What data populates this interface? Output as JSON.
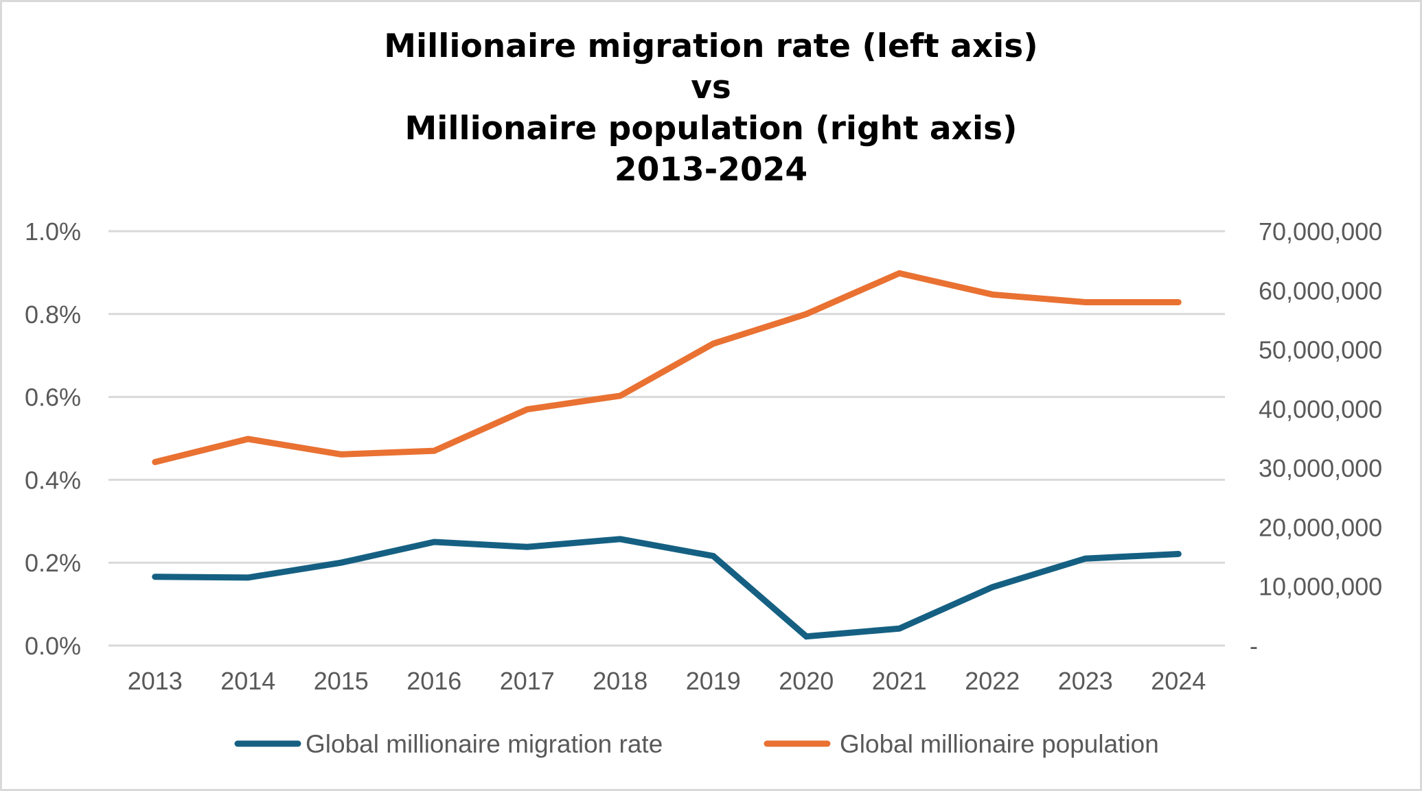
{
  "chart_data": {
    "type": "line",
    "title_lines": [
      "Millionaire migration rate (left axis)",
      "vs",
      "Millionaire population (right axis)",
      "2013-2024"
    ],
    "categories": [
      "2013",
      "2014",
      "2015",
      "2016",
      "2017",
      "2018",
      "2019",
      "2020",
      "2021",
      "2022",
      "2023",
      "2024"
    ],
    "series": [
      {
        "name": "Global millionaire migration rate",
        "axis": "left",
        "color": "#156082",
        "values": [
          0.166,
          0.164,
          0.2,
          0.25,
          0.238,
          0.257,
          0.216,
          0.022,
          0.041,
          0.141,
          0.21,
          0.221
        ]
      },
      {
        "name": "Global millionaire population",
        "axis": "right",
        "color": "#E97132",
        "values": [
          31000000,
          34900000,
          32300000,
          32900000,
          39900000,
          42200000,
          51000000,
          56000000,
          62900000,
          59300000,
          58000000,
          58000000
        ]
      }
    ],
    "left_axis": {
      "min": 0,
      "max": 1.0,
      "step": 0.2,
      "tick_labels": [
        "0.0%",
        "0.2%",
        "0.4%",
        "0.6%",
        "0.8%",
        "1.0%"
      ]
    },
    "right_axis": {
      "min": 0,
      "max": 70000000,
      "step": 10000000,
      "tick_labels": [
        "-",
        "10,000,000",
        "20,000,000",
        "30,000,000",
        "40,000,000",
        "50,000,000",
        "60,000,000",
        "70,000,000"
      ]
    },
    "xlabel": "",
    "ylabel_left": "",
    "ylabel_right": "",
    "grid": true,
    "legend_position": "bottom",
    "colors": {
      "gridline": "#D9D9D9",
      "text": "#595959",
      "border": "#D9D9D9"
    }
  }
}
